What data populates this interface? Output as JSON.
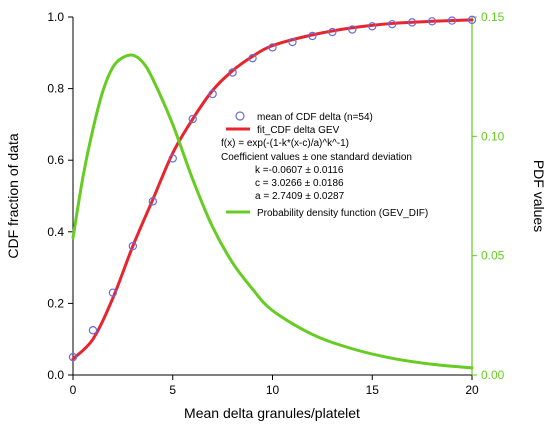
{
  "chart_data": {
    "type": "line",
    "title": "",
    "xlabel": "Mean delta granules/platelet",
    "ylabel_left": "CDF fraction of data",
    "ylabel_right": "PDF values",
    "xlim": [
      0,
      20
    ],
    "ylim_left": [
      0,
      1.0
    ],
    "ylim_right": [
      0,
      0.15
    ],
    "x_ticks": [
      "0",
      "5",
      "10",
      "15",
      "20"
    ],
    "y_left_ticks": [
      "0.0",
      "0.2",
      "0.4",
      "0.6",
      "0.8",
      "1.0"
    ],
    "y_right_ticks": [
      "0.00",
      "0.05",
      "0.10",
      "0.15"
    ],
    "grid": false,
    "legend_position": "center-right",
    "colors": {
      "markers": "#6b6bd8",
      "fit": "#e8252e",
      "pdf": "#66cc22",
      "right_axis": "#66cc22",
      "left_axis": "#000000"
    },
    "series": [
      {
        "name": "mean of CDF delta (n=54)",
        "kind": "markers",
        "axis": "left",
        "x": [
          0,
          1,
          2,
          3,
          4,
          5,
          6,
          7,
          8,
          9,
          10,
          11,
          12,
          13,
          14,
          15,
          16,
          17,
          18,
          19,
          20
        ],
        "y": [
          0.05,
          0.125,
          0.23,
          0.36,
          0.485,
          0.605,
          0.715,
          0.785,
          0.845,
          0.885,
          0.915,
          0.93,
          0.947,
          0.958,
          0.965,
          0.974,
          0.98,
          0.985,
          0.988,
          0.99,
          0.992
        ]
      },
      {
        "name": "fit_CDF delta GEV",
        "kind": "line",
        "axis": "left",
        "x": [
          0,
          1,
          2,
          3,
          4,
          5,
          6,
          7,
          8,
          9,
          10,
          12,
          14,
          16,
          18,
          20
        ],
        "y": [
          0.045,
          0.1,
          0.215,
          0.36,
          0.49,
          0.62,
          0.715,
          0.795,
          0.85,
          0.89,
          0.92,
          0.95,
          0.97,
          0.982,
          0.988,
          0.992
        ]
      },
      {
        "name": "Probability density function (GEV_DIF)",
        "kind": "line",
        "axis": "right",
        "x": [
          0,
          0.5,
          1,
          1.5,
          2,
          2.5,
          3,
          3.5,
          4,
          5,
          6,
          7,
          8,
          9,
          10,
          12,
          14,
          16,
          18,
          20
        ],
        "y": [
          0.0575,
          0.083,
          0.103,
          0.119,
          0.129,
          0.133,
          0.134,
          0.131,
          0.124,
          0.105,
          0.082,
          0.062,
          0.047,
          0.036,
          0.027,
          0.017,
          0.011,
          0.007,
          0.0045,
          0.003
        ]
      }
    ],
    "legend": {
      "entries": [
        "mean of CDF delta (n=54)",
        "fit_CDF delta GEV",
        "Probability density function (GEV_DIF)"
      ],
      "fit_text": [
        "f(x) = exp(-(1-k*(x-c)/a)^k^-1)",
        "Coefficient values ± one standard deviation",
        "k =-0.0607 ± 0.0116",
        "c = 3.0266 ± 0.0186",
        "a = 2.7409 ± 0.0287"
      ]
    }
  }
}
